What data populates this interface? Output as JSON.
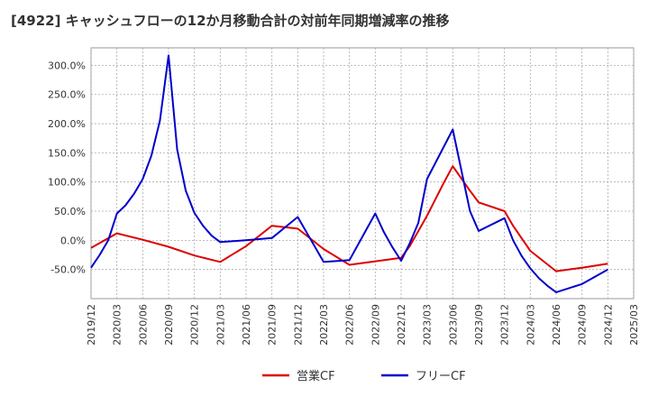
{
  "chart_data": {
    "type": "line",
    "title": "[4922]  キャッシュフローの12か月移動合計の対前年同期増減率の推移",
    "xlabel": "",
    "ylabel": "",
    "ylim": [
      -100,
      330
    ],
    "y_ticks": [
      300,
      250,
      200,
      150,
      100,
      50,
      0,
      -50
    ],
    "y_tick_labels": [
      "300.0%",
      "250.0%",
      "200.0%",
      "150.0%",
      "100.0%",
      "50.0%",
      "0.0%",
      "-50.0%"
    ],
    "x_tick_labels": [
      "2019/12",
      "2020/03",
      "2020/06",
      "2020/09",
      "2020/12",
      "2021/03",
      "2021/06",
      "2021/09",
      "2021/12",
      "2022/03",
      "2022/06",
      "2022/09",
      "2022/12",
      "2023/03",
      "2023/06",
      "2023/09",
      "2023/12",
      "2024/03",
      "2024/06",
      "2024/09",
      "2024/12",
      "2025/03"
    ],
    "grid": true,
    "legend_position": "bottom",
    "series": [
      {
        "name": "営業CF",
        "color": "#dd0000",
        "x": [
          "2019/12",
          "2020/03",
          "2020/06",
          "2020/09",
          "2020/12",
          "2021/03",
          "2021/06",
          "2021/09",
          "2021/12",
          "2022/03",
          "2022/06",
          "2022/09",
          "2022/12",
          "2023/01",
          "2023/03",
          "2023/05",
          "2023/06",
          "2023/08",
          "2023/09",
          "2023/12",
          "2024/01",
          "2024/03",
          "2024/06",
          "2024/09",
          "2024/12"
        ],
        "values": [
          -13,
          12,
          1,
          -11,
          -26,
          -37,
          -10,
          25,
          20,
          -15,
          -42,
          -36,
          -30,
          -10,
          42,
          100,
          127,
          85,
          65,
          50,
          25,
          -18,
          -53,
          -47,
          -40
        ]
      },
      {
        "name": "フリーCF",
        "color": "#0000cc",
        "x": [
          "2019/12",
          "2020/01",
          "2020/02",
          "2020/03",
          "2020/04",
          "2020/05",
          "2020/06",
          "2020/07",
          "2020/08",
          "2020/09",
          "2020/10",
          "2020/11",
          "2020/12",
          "2021/01",
          "2021/02",
          "2021/03",
          "2021/06",
          "2021/09",
          "2021/12",
          "2022/03",
          "2022/06",
          "2022/09",
          "2022/10",
          "2022/11",
          "2022/12",
          "2023/01",
          "2023/02",
          "2023/03",
          "2023/06",
          "2023/08",
          "2023/09",
          "2023/12",
          "2024/01",
          "2024/02",
          "2024/03",
          "2024/04",
          "2024/05",
          "2024/06",
          "2024/09",
          "2024/12"
        ],
        "values": [
          -47,
          -25,
          0,
          46,
          60,
          80,
          105,
          145,
          205,
          317,
          155,
          85,
          47,
          25,
          8,
          -3,
          0,
          4,
          40,
          -37,
          -34,
          46,
          14,
          -12,
          -35,
          -5,
          30,
          105,
          190,
          50,
          16,
          38,
          0,
          -27,
          -48,
          -65,
          -78,
          -89,
          -75,
          -50
        ]
      }
    ]
  }
}
